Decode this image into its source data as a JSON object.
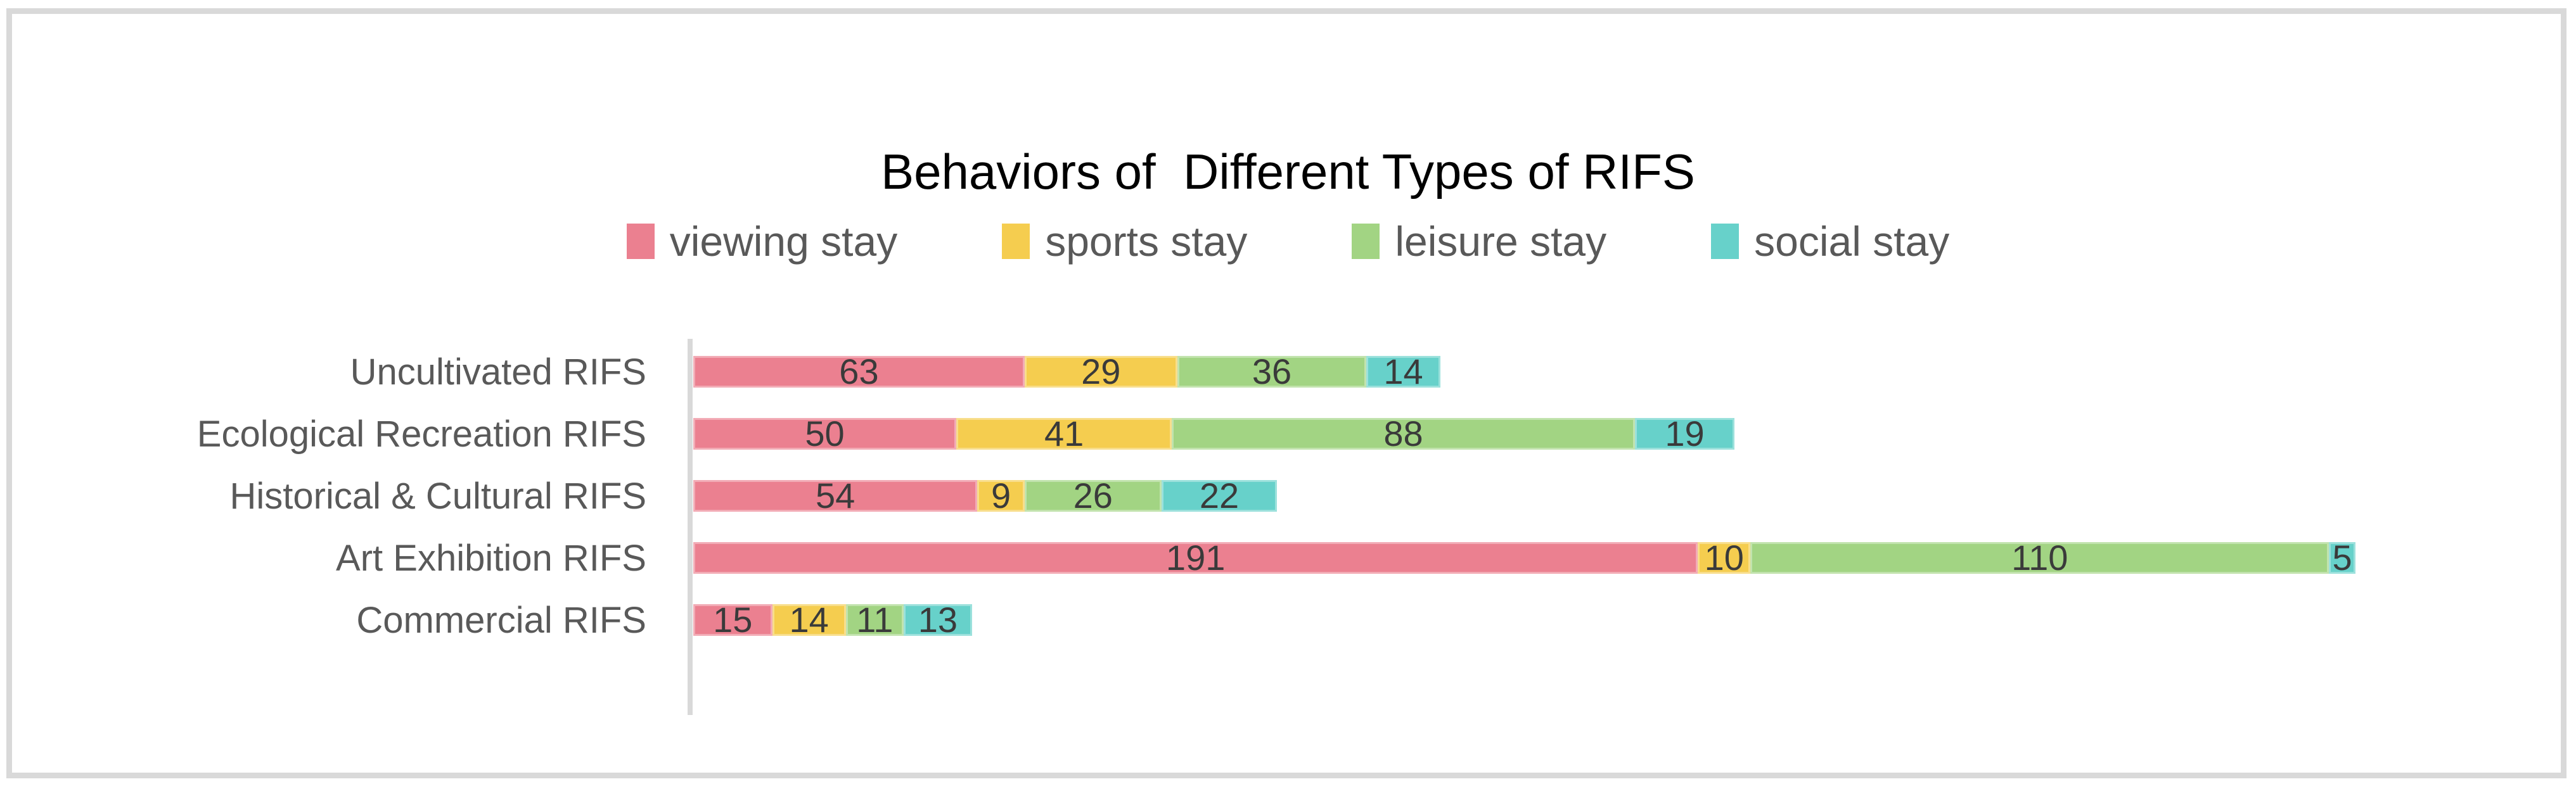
{
  "chart_data": {
    "type": "bar",
    "variant": "horizontal-stacked",
    "title": "Behaviors of  Different Types of RIFS",
    "legend_position": "top",
    "data_labels": true,
    "grid": false,
    "categories": [
      "Uncultivated RIFS",
      "Ecological Recreation RIFS",
      "Historical & Cultural RIFS",
      "Art Exhibition RIFS",
      "Commercial RIFS"
    ],
    "series": [
      {
        "name": "viewing stay",
        "color": "#EB8090",
        "values": [
          63,
          50,
          54,
          191,
          15
        ]
      },
      {
        "name": "sports stay",
        "color": "#F5CD4F",
        "values": [
          29,
          41,
          9,
          10,
          14
        ]
      },
      {
        "name": "leisure stay",
        "color": "#A2D483",
        "values": [
          36,
          88,
          26,
          110,
          11
        ]
      },
      {
        "name": "social stay",
        "color": "#67D1CA",
        "values": [
          14,
          19,
          22,
          5,
          13
        ]
      }
    ],
    "axis": {
      "value_axis_line_color": "#D9D9D9",
      "value_axis_min": 0
    }
  },
  "colors": {
    "frame_border": "#D9D9D9",
    "title_text": "#000000",
    "category_label_text": "#595959",
    "legend_text": "#595959",
    "data_label_text": "#3A3A3A",
    "background": "#FFFFFF"
  }
}
